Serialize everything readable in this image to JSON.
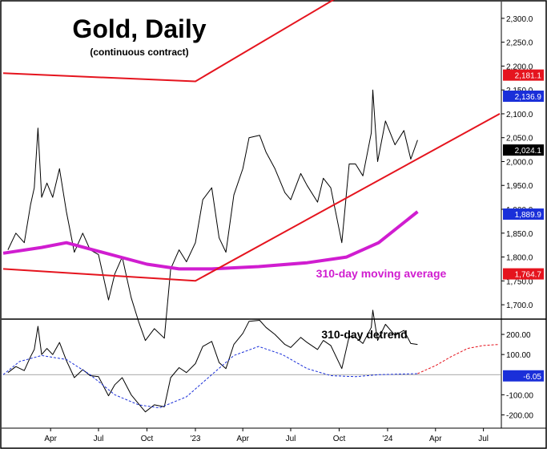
{
  "chart_data": [
    {
      "type": "line",
      "title": "Gold, Daily",
      "subtitle": "(continuous contract)",
      "annotation": "310-day moving average",
      "x_tick_labels": [
        "Apr",
        "Jul",
        "Oct",
        "'23",
        "Apr",
        "Jul",
        "Oct",
        "'24",
        "Apr",
        "Jul"
      ],
      "y_tick_labels": [
        "2,300.0",
        "2,250.0",
        "2,200.0",
        "2,150.0",
        "2,100.0",
        "2,050.0",
        "2,000.0",
        "1,950.0",
        "1,900.0",
        "1,850.0",
        "1,800.0",
        "1,750.0",
        "1,700.0"
      ],
      "ylim": [
        1680,
        2330
      ],
      "price_labels": [
        {
          "text": "2,181.1",
          "value": 2181.1,
          "color": "#e5141e"
        },
        {
          "text": "2,136.9",
          "value": 2136.9,
          "color": "#1a2fd9"
        },
        {
          "text": "2,024.1",
          "value": 2024.1,
          "color": "#000000"
        },
        {
          "text": "1,889.9",
          "value": 1889.9,
          "color": "#1a2fd9"
        },
        {
          "text": "1,764.7",
          "value": 1764.7,
          "color": "#e5141e"
        }
      ],
      "series": [
        {
          "color": "#000000",
          "points": [
            [
              "2022-01-10",
              1815
            ],
            [
              "2022-01-25",
              1850
            ],
            [
              "2022-02-10",
              1830
            ],
            [
              "2022-02-22",
              1910
            ],
            [
              "2022-03-01",
              1945
            ],
            [
              "2022-03-08",
              2070
            ],
            [
              "2022-03-15",
              1925
            ],
            [
              "2022-03-25",
              1955
            ],
            [
              "2022-04-05",
              1925
            ],
            [
              "2022-04-18",
              1985
            ],
            [
              "2022-05-01",
              1895
            ],
            [
              "2022-05-16",
              1810
            ],
            [
              "2022-06-01",
              1850
            ],
            [
              "2022-06-15",
              1815
            ],
            [
              "2022-07-01",
              1805
            ],
            [
              "2022-07-20",
              1710
            ],
            [
              "2022-08-01",
              1765
            ],
            [
              "2022-08-15",
              1800
            ],
            [
              "2022-09-01",
              1715
            ],
            [
              "2022-09-15",
              1665
            ],
            [
              "2022-09-28",
              1625
            ],
            [
              "2022-10-15",
              1650
            ],
            [
              "2022-11-03",
              1630
            ],
            [
              "2022-11-15",
              1775
            ],
            [
              "2022-12-01",
              1815
            ],
            [
              "2022-12-15",
              1790
            ],
            [
              "2023-01-01",
              1830
            ],
            [
              "2023-01-15",
              1920
            ],
            [
              "2023-02-01",
              1945
            ],
            [
              "2023-02-15",
              1840
            ],
            [
              "2023-02-28",
              1810
            ],
            [
              "2023-03-15",
              1930
            ],
            [
              "2023-04-01",
              1985
            ],
            [
              "2023-04-13",
              2050
            ],
            [
              "2023-05-03",
              2055
            ],
            [
              "2023-05-15",
              2020
            ],
            [
              "2023-06-01",
              1985
            ],
            [
              "2023-06-20",
              1935
            ],
            [
              "2023-07-01",
              1920
            ],
            [
              "2023-07-20",
              1975
            ],
            [
              "2023-08-01",
              1950
            ],
            [
              "2023-08-21",
              1915
            ],
            [
              "2023-09-01",
              1965
            ],
            [
              "2023-09-15",
              1945
            ],
            [
              "2023-10-06",
              1830
            ],
            [
              "2023-10-20",
              1995
            ],
            [
              "2023-11-01",
              1995
            ],
            [
              "2023-11-15",
              1970
            ],
            [
              "2023-12-01",
              2060
            ],
            [
              "2023-12-04",
              2150
            ],
            [
              "2023-12-13",
              2000
            ],
            [
              "2023-12-28",
              2085
            ],
            [
              "2024-01-15",
              2035
            ],
            [
              "2024-02-01",
              2065
            ],
            [
              "2024-02-14",
              2005
            ],
            [
              "2024-02-27",
              2045
            ]
          ]
        },
        {
          "name": "310-day moving average",
          "color": "#d01dd0",
          "points": [
            [
              "2022-01-01",
              1808
            ],
            [
              "2022-03-15",
              1820
            ],
            [
              "2022-05-01",
              1830
            ],
            [
              "2022-07-01",
              1812
            ],
            [
              "2022-10-01",
              1785
            ],
            [
              "2022-12-01",
              1775
            ],
            [
              "2023-02-01",
              1775
            ],
            [
              "2023-05-01",
              1780
            ],
            [
              "2023-08-01",
              1788
            ],
            [
              "2023-10-15",
              1800
            ],
            [
              "2023-12-15",
              1830
            ],
            [
              "2024-02-27",
              1895
            ]
          ]
        },
        {
          "color": "#e5141e",
          "points": [
            [
              "2022-01-01",
              2185
            ],
            [
              "2023-01-01",
              2168
            ],
            [
              "2024-06-01",
              2505
            ]
          ]
        },
        {
          "color": "#e5141e",
          "points": [
            [
              "2022-01-01",
              1775
            ],
            [
              "2023-01-01",
              1750
            ],
            [
              "2024-08-01",
              2100
            ]
          ]
        }
      ]
    },
    {
      "type": "line",
      "title": "310-day detrend",
      "x_tick_labels": [
        "Apr",
        "Jul",
        "Oct",
        "'23",
        "Apr",
        "Jul",
        "Oct",
        "'24",
        "Apr",
        "Jul"
      ],
      "y_tick_labels": [
        "200.00",
        "100.00",
        "-100.00",
        "-200.00"
      ],
      "ylim": [
        -250,
        260
      ],
      "price_labels": [
        {
          "text": "-6.05",
          "value": -6.05,
          "color": "#1a2fd9"
        }
      ],
      "series": [
        {
          "color": "#000000",
          "points": [
            [
              "2022-01-10",
              10
            ],
            [
              "2022-01-25",
              40
            ],
            [
              "2022-02-10",
              20
            ],
            [
              "2022-02-22",
              90
            ],
            [
              "2022-03-01",
              125
            ],
            [
              "2022-03-08",
              240
            ],
            [
              "2022-03-15",
              100
            ],
            [
              "2022-03-25",
              130
            ],
            [
              "2022-04-05",
              100
            ],
            [
              "2022-04-18",
              160
            ],
            [
              "2022-05-01",
              70
            ],
            [
              "2022-05-16",
              -15
            ],
            [
              "2022-06-01",
              25
            ],
            [
              "2022-06-15",
              -5
            ],
            [
              "2022-07-01",
              -10
            ],
            [
              "2022-07-20",
              -105
            ],
            [
              "2022-08-01",
              -50
            ],
            [
              "2022-08-15",
              -15
            ],
            [
              "2022-09-01",
              -100
            ],
            [
              "2022-09-15",
              -145
            ],
            [
              "2022-09-28",
              -185
            ],
            [
              "2022-10-15",
              -150
            ],
            [
              "2022-11-03",
              -160
            ],
            [
              "2022-11-15",
              -15
            ],
            [
              "2022-12-01",
              35
            ],
            [
              "2022-12-15",
              10
            ],
            [
              "2023-01-01",
              55
            ],
            [
              "2023-01-15",
              140
            ],
            [
              "2023-02-01",
              165
            ],
            [
              "2023-02-15",
              60
            ],
            [
              "2023-02-28",
              30
            ],
            [
              "2023-03-15",
              150
            ],
            [
              "2023-04-01",
              205
            ],
            [
              "2023-04-13",
              265
            ],
            [
              "2023-05-03",
              270
            ],
            [
              "2023-05-15",
              235
            ],
            [
              "2023-06-01",
              200
            ],
            [
              "2023-06-20",
              150
            ],
            [
              "2023-07-01",
              135
            ],
            [
              "2023-07-20",
              185
            ],
            [
              "2023-08-01",
              160
            ],
            [
              "2023-08-21",
              125
            ],
            [
              "2023-09-01",
              170
            ],
            [
              "2023-09-15",
              145
            ],
            [
              "2023-10-06",
              30
            ],
            [
              "2023-10-20",
              190
            ],
            [
              "2023-11-01",
              185
            ],
            [
              "2023-11-15",
              155
            ],
            [
              "2023-12-01",
              235
            ],
            [
              "2023-12-04",
              320
            ],
            [
              "2023-12-13",
              170
            ],
            [
              "2023-12-28",
              250
            ],
            [
              "2024-01-15",
              195
            ],
            [
              "2024-02-01",
              220
            ],
            [
              "2024-02-14",
              155
            ],
            [
              "2024-02-27",
              150
            ]
          ]
        },
        {
          "color": "#1a2fd9",
          "points": [
            [
              "2022-01-01",
              0
            ],
            [
              "2022-02-01",
              65
            ],
            [
              "2022-03-15",
              95
            ],
            [
              "2022-05-01",
              75
            ],
            [
              "2022-06-15",
              0
            ],
            [
              "2022-08-01",
              -100
            ],
            [
              "2022-09-15",
              -150
            ],
            [
              "2022-10-25",
              -165
            ],
            [
              "2022-12-15",
              -110
            ],
            [
              "2023-02-01",
              0
            ],
            [
              "2023-03-15",
              95
            ],
            [
              "2023-05-01",
              140
            ],
            [
              "2023-06-15",
              100
            ],
            [
              "2023-08-01",
              30
            ],
            [
              "2023-09-15",
              -5
            ],
            [
              "2023-11-01",
              -10
            ],
            [
              "2023-12-15",
              0
            ],
            [
              "2024-02-27",
              5
            ]
          ]
        },
        {
          "color": "#e5141e",
          "points": [
            [
              "2024-02-27",
              5
            ],
            [
              "2024-04-01",
              45
            ],
            [
              "2024-05-01",
              90
            ],
            [
              "2024-06-01",
              130
            ],
            [
              "2024-07-01",
              145
            ],
            [
              "2024-07-31",
              150
            ]
          ]
        }
      ]
    }
  ]
}
